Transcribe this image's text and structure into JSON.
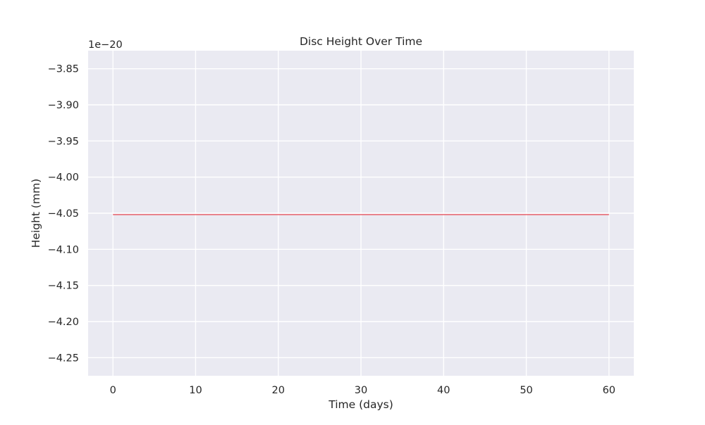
{
  "chart_data": {
    "type": "line",
    "title": "Disc Height Over Time",
    "xlabel": "Time (days)",
    "ylabel": "Height (mm)",
    "y_offset_label": "1e−20",
    "xlim": [
      -3,
      63
    ],
    "ylim": [
      -4.275,
      -3.825
    ],
    "y_scale_exponent": -20,
    "xticks": [
      0,
      10,
      20,
      30,
      40,
      50,
      60
    ],
    "xtick_labels": [
      "0",
      "10",
      "20",
      "30",
      "40",
      "50",
      "60"
    ],
    "yticks": [
      -3.85,
      -3.9,
      -3.95,
      -4.0,
      -4.05,
      -4.1,
      -4.15,
      -4.2,
      -4.25
    ],
    "ytick_labels": [
      "−3.85",
      "−3.90",
      "−3.95",
      "−4.00",
      "−4.05",
      "−4.10",
      "−4.15",
      "−4.20",
      "−4.25"
    ],
    "grid": true,
    "series": [
      {
        "color": "#e8606a",
        "x": [
          0,
          60
        ],
        "y": [
          -4.052,
          -4.052
        ]
      }
    ]
  },
  "colors": {
    "plot_background": "#eaeaf2",
    "grid": "#ffffff",
    "text": "#262626"
  }
}
